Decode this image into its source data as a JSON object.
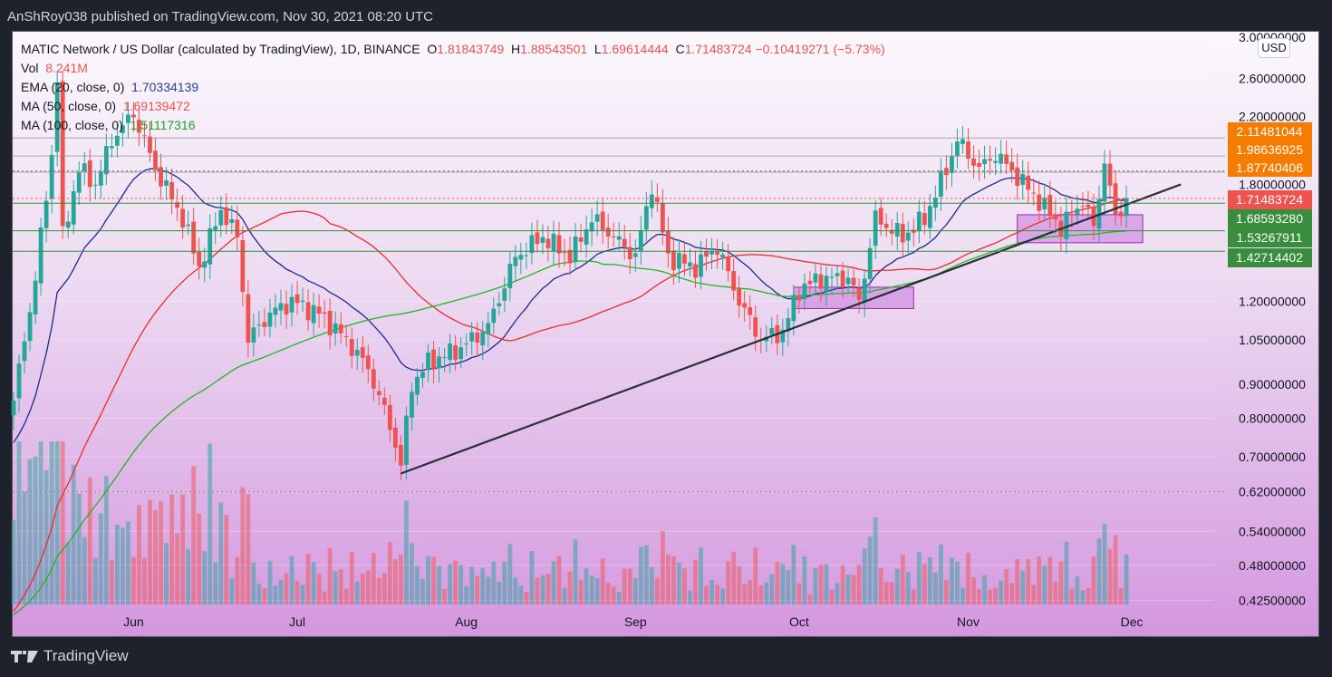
{
  "header": {
    "publisher": "AnShRoy038 published on TradingView.com, Nov 30, 2021 08:20 UTC"
  },
  "legend": {
    "symbol": "MATIC Network / US Dollar (calculated by TradingView), 1D, BINANCE",
    "o_label": "O",
    "open": "1.81843749",
    "h_label": "H",
    "high": "1.88543501",
    "l_label": "L",
    "low": "1.69614444",
    "c_label": "C",
    "close": "1.71483724",
    "change": "−0.10419271 (−5.73%)",
    "vol_label": "Vol",
    "vol": "8.241M",
    "ema_label": "EMA (20, close, 0)",
    "ema": "1.70334139",
    "ma50_label": "MA (50, close, 0)",
    "ma50": "1.69139472",
    "ma100_label": "MA (100, close, 0)",
    "ma100": "1.51117316"
  },
  "footer": {
    "brand": "TradingView"
  },
  "colors": {
    "up": "#26a69a",
    "down": "#ef5350",
    "ema": "#1c2a8f",
    "ma50": "#ef2b2b",
    "ma100": "#1fb81f",
    "orange": "#f57c00",
    "green_label": "#388e3c",
    "trendline": "#2a2e39",
    "zone": "#c678dd"
  },
  "chart_data": {
    "type": "candlestick",
    "currency": "USD",
    "y_scale": "log",
    "ylim": [
      0.425,
      3.0
    ],
    "y_ticks": [
      "3.00000000",
      "2.60000000",
      "2.20000000",
      "1.80000000",
      "1.20000000",
      "1.05000000",
      "0.90000000",
      "0.80000000",
      "0.70000000",
      "0.62000000",
      "0.54000000",
      "0.48000000",
      "0.42500000"
    ],
    "y_tick_values": [
      3.0,
      2.6,
      2.2,
      1.8,
      1.2,
      1.05,
      0.9,
      0.8,
      0.7,
      0.62,
      0.54,
      0.48,
      0.425
    ],
    "x_ticks": [
      "Jun",
      "Jul",
      "Aug",
      "Sep",
      "Oct",
      "Nov",
      "Dec"
    ],
    "x_tick_dates": [
      "2021-06-01",
      "2021-07-01",
      "2021-08-01",
      "2021-09-01",
      "2021-10-01",
      "2021-11-01",
      "2021-12-01"
    ],
    "xlim": [
      "2021-05-10",
      "2021-12-10"
    ],
    "closes_approx": [
      [
        "2021-05-10",
        0.85
      ],
      [
        "2021-05-14",
        1.3
      ],
      [
        "2021-05-17",
        2.0
      ],
      [
        "2021-05-18",
        2.6
      ],
      [
        "2021-05-19",
        1.5
      ],
      [
        "2021-05-22",
        1.9
      ],
      [
        "2021-05-25",
        1.8
      ],
      [
        "2021-05-28",
        2.1
      ],
      [
        "2021-06-01",
        2.3
      ],
      [
        "2021-06-05",
        1.9
      ],
      [
        "2021-06-10",
        1.6
      ],
      [
        "2021-06-13",
        1.35
      ],
      [
        "2021-06-17",
        1.65
      ],
      [
        "2021-06-20",
        1.5
      ],
      [
        "2021-06-22",
        1.05
      ],
      [
        "2021-06-26",
        1.15
      ],
      [
        "2021-06-30",
        1.2
      ],
      [
        "2021-07-05",
        1.15
      ],
      [
        "2021-07-10",
        1.05
      ],
      [
        "2021-07-14",
        0.95
      ],
      [
        "2021-07-18",
        0.78
      ],
      [
        "2021-07-20",
        0.68
      ],
      [
        "2021-07-22",
        0.9
      ],
      [
        "2021-07-25",
        0.97
      ],
      [
        "2021-07-31",
        1.02
      ],
      [
        "2021-08-05",
        1.1
      ],
      [
        "2021-08-10",
        1.4
      ],
      [
        "2021-08-15",
        1.5
      ],
      [
        "2021-08-20",
        1.4
      ],
      [
        "2021-08-24",
        1.6
      ],
      [
        "2021-08-28",
        1.5
      ],
      [
        "2021-09-01",
        1.4
      ],
      [
        "2021-09-04",
        1.8
      ],
      [
        "2021-09-07",
        1.4
      ],
      [
        "2021-09-12",
        1.35
      ],
      [
        "2021-09-16",
        1.45
      ],
      [
        "2021-09-20",
        1.2
      ],
      [
        "2021-09-24",
        1.05
      ],
      [
        "2021-09-28",
        1.08
      ],
      [
        "2021-10-01",
        1.25
      ],
      [
        "2021-10-05",
        1.3
      ],
      [
        "2021-10-10",
        1.3
      ],
      [
        "2021-10-12",
        1.2
      ],
      [
        "2021-10-15",
        1.6
      ],
      [
        "2021-10-20",
        1.5
      ],
      [
        "2021-10-24",
        1.6
      ],
      [
        "2021-10-28",
        1.9
      ],
      [
        "2021-10-30",
        2.1
      ],
      [
        "2021-11-03",
        1.9
      ],
      [
        "2021-11-06",
        2.0
      ],
      [
        "2021-11-10",
        1.85
      ],
      [
        "2021-11-14",
        1.7
      ],
      [
        "2021-11-18",
        1.55
      ],
      [
        "2021-11-22",
        1.7
      ],
      [
        "2021-11-24",
        1.55
      ],
      [
        "2021-11-26",
        1.95
      ],
      [
        "2021-11-28",
        1.6
      ],
      [
        "2021-11-30",
        1.71483724
      ]
    ],
    "indicators": [
      "EMA 20",
      "MA 50",
      "MA 100",
      "Volume"
    ],
    "price_labels": [
      {
        "value": "2.11481044",
        "color": "orange"
      },
      {
        "value": "1.98636925",
        "color": "orange"
      },
      {
        "value": "1.87740406",
        "color": "orange"
      },
      {
        "value": "1.71483724",
        "color": "red"
      },
      {
        "value": "1.68593280",
        "color": "green"
      },
      {
        "value": "1.53267911",
        "color": "green"
      },
      {
        "value": "1.42714402",
        "color": "green"
      }
    ],
    "trendline": {
      "from": [
        "2021-07-20",
        0.66
      ],
      "to": [
        "2021-12-10",
        1.8
      ]
    },
    "zones": [
      {
        "from": "2021-09-30",
        "to": "2021-10-22",
        "low": 1.17,
        "high": 1.26
      },
      {
        "from": "2021-11-10",
        "to": "2021-12-03",
        "low": 1.47,
        "high": 1.62
      }
    ]
  }
}
